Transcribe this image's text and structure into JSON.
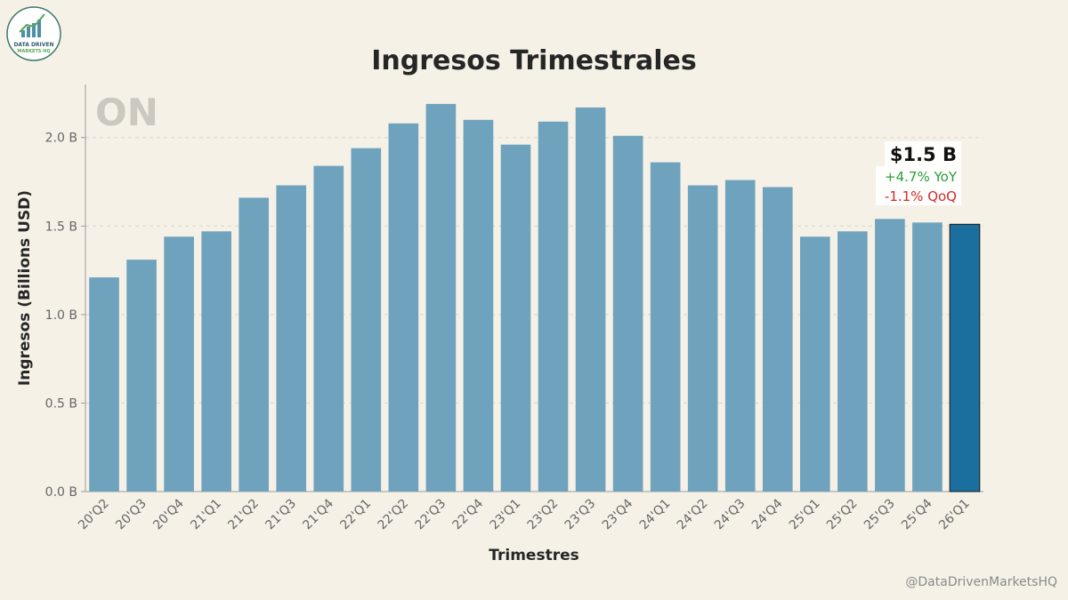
{
  "logo": {
    "line1": "DATA DRIVEN",
    "line2": "MARKETS HQ"
  },
  "watermark": "ON",
  "credit": "@DataDrivenMarketsHQ",
  "callout": {
    "value": "$1.5 B",
    "yoy": "+4.7% YoY",
    "qoq": "-1.1% QoQ",
    "yoy_color": "#2a9d3a",
    "qoq_color": "#d62828"
  },
  "colors": {
    "bar": "#6fa3bd",
    "bar_highlight": "#1b6f9e",
    "background": "#f5f1e6"
  },
  "chart_data": {
    "type": "bar",
    "title": "Ingresos Trimestrales",
    "xlabel": "Trimestres",
    "ylabel": "Ingresos (Billions USD)",
    "ylim": [
      0,
      2.3
    ],
    "yticks": [
      {
        "value": 0.0,
        "label": "0.0 B"
      },
      {
        "value": 0.5,
        "label": "0.5 B"
      },
      {
        "value": 1.0,
        "label": "1.0 B"
      },
      {
        "value": 1.5,
        "label": "1.5 B"
      },
      {
        "value": 2.0,
        "label": "2.0 B"
      }
    ],
    "grid": true,
    "highlight_last": true,
    "categories": [
      "20'Q2",
      "20'Q3",
      "20'Q4",
      "21'Q1",
      "21'Q2",
      "21'Q3",
      "21'Q4",
      "22'Q1",
      "22'Q2",
      "22'Q3",
      "22'Q4",
      "23'Q1",
      "23'Q2",
      "23'Q3",
      "23'Q4",
      "24'Q1",
      "24'Q2",
      "24'Q3",
      "24'Q4",
      "25'Q1",
      "25'Q2",
      "25'Q3",
      "25'Q4",
      "26'Q1"
    ],
    "values": [
      1.21,
      1.31,
      1.44,
      1.47,
      1.66,
      1.73,
      1.84,
      1.94,
      2.08,
      2.19,
      2.1,
      1.96,
      2.09,
      2.17,
      2.01,
      1.86,
      1.73,
      1.76,
      1.72,
      1.44,
      1.47,
      1.54,
      1.52,
      1.51
    ]
  }
}
